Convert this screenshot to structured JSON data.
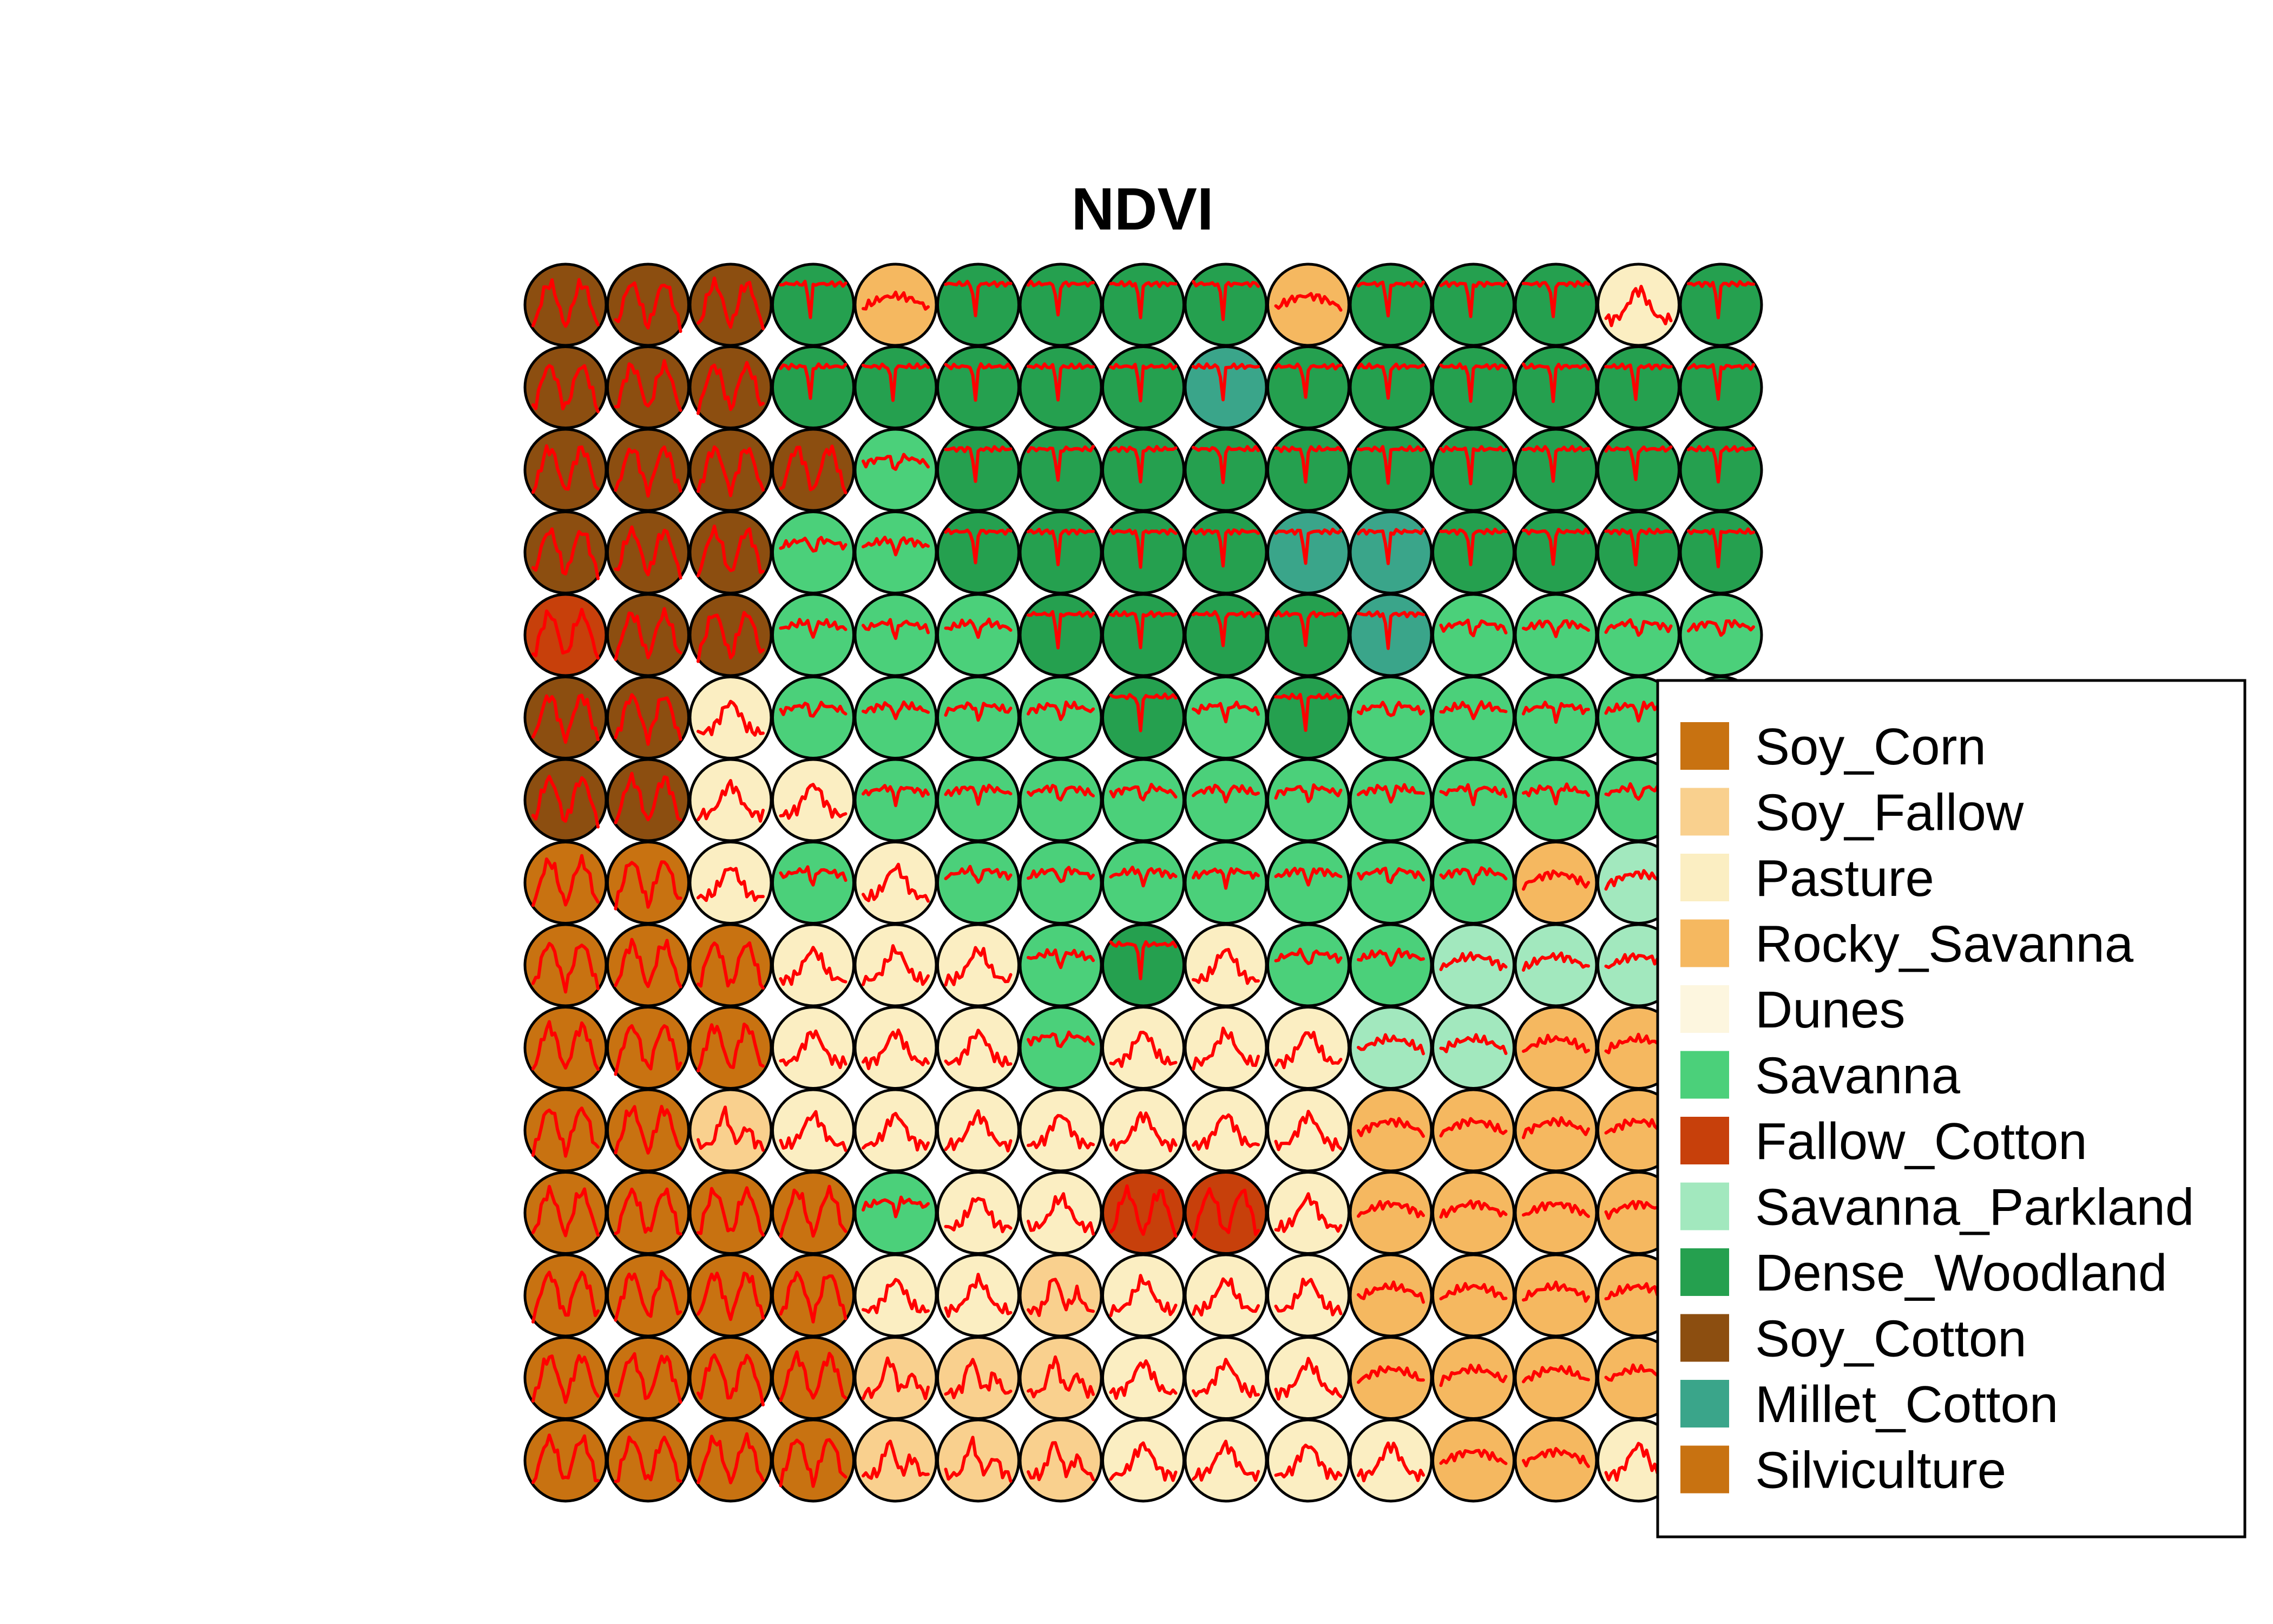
{
  "chart_data": {
    "type": "som_map",
    "title": "NDVI",
    "grid": {
      "rows": 15,
      "cols": 15
    },
    "legend": {
      "placement": "right",
      "entries": [
        {
          "key": "SC",
          "label": "Soy_Corn",
          "color": "#C87211"
        },
        {
          "key": "SF",
          "label": "Soy_Fallow",
          "color": "#F9D08E"
        },
        {
          "key": "P",
          "label": "Pasture",
          "color": "#FBEEC2"
        },
        {
          "key": "R",
          "label": "Rocky_Savanna",
          "color": "#F5B860"
        },
        {
          "key": "D",
          "label": "Dunes",
          "color": "#FDF6DF"
        },
        {
          "key": "S",
          "label": "Savanna",
          "color": "#4BD07A"
        },
        {
          "key": "FC",
          "label": "Fallow_Cotton",
          "color": "#C7400B"
        },
        {
          "key": "SP",
          "label": "Savanna_Parkland",
          "color": "#A2E8BE"
        },
        {
          "key": "DW",
          "label": "Dense_Woodland",
          "color": "#25A04F"
        },
        {
          "key": "SCo",
          "label": "Soy_Cotton",
          "color": "#8C4E10"
        },
        {
          "key": "MC",
          "label": "Millet_Cotton",
          "color": "#3AA58A"
        },
        {
          "key": "Si",
          "label": "Silviculture",
          "color": "#C87211"
        }
      ]
    },
    "cells": [
      [
        "SCo",
        "SCo",
        "SCo",
        "DW",
        "R",
        "DW",
        "DW",
        "DW",
        "DW",
        "R",
        "DW",
        "DW",
        "DW",
        "P",
        "DW"
      ],
      [
        "SCo",
        "SCo",
        "SCo",
        "DW",
        "DW",
        "DW",
        "DW",
        "DW",
        "MC",
        "DW",
        "DW",
        "DW",
        "DW",
        "DW",
        "DW"
      ],
      [
        "SCo",
        "SCo",
        "SCo",
        "SCo",
        "S",
        "DW",
        "DW",
        "DW",
        "DW",
        "DW",
        "DW",
        "DW",
        "DW",
        "DW",
        "DW"
      ],
      [
        "SCo",
        "SCo",
        "SCo",
        "S",
        "S",
        "DW",
        "DW",
        "DW",
        "DW",
        "MC",
        "MC",
        "DW",
        "DW",
        "DW",
        "DW"
      ],
      [
        "FC",
        "SCo",
        "SCo",
        "S",
        "S",
        "S",
        "DW",
        "DW",
        "DW",
        "DW",
        "MC",
        "S",
        "S",
        "S",
        "S"
      ],
      [
        "SCo",
        "SCo",
        "P",
        "S",
        "S",
        "S",
        "S",
        "DW",
        "S",
        "DW",
        "S",
        "S",
        "S",
        "S",
        "S"
      ],
      [
        "SCo",
        "SCo",
        "P",
        "P",
        "S",
        "S",
        "S",
        "S",
        "S",
        "S",
        "S",
        "S",
        "S",
        "S",
        "S"
      ],
      [
        "Si",
        "Si",
        "P",
        "S",
        "P",
        "S",
        "S",
        "S",
        "S",
        "S",
        "S",
        "S",
        "R",
        "SP",
        "SP"
      ],
      [
        "Si",
        "Si",
        "Si",
        "P",
        "P",
        "P",
        "S",
        "DW",
        "P",
        "S",
        "S",
        "SP",
        "SP",
        "SP",
        "SP"
      ],
      [
        "Si",
        "Si",
        "Si",
        "P",
        "P",
        "P",
        "S",
        "P",
        "P",
        "P",
        "SP",
        "SP",
        "R",
        "R",
        "R"
      ],
      [
        "Si",
        "Si",
        "SF",
        "P",
        "P",
        "P",
        "P",
        "P",
        "P",
        "P",
        "R",
        "R",
        "R",
        "R",
        "R"
      ],
      [
        "Si",
        "Si",
        "Si",
        "Si",
        "S",
        "P",
        "P",
        "FC",
        "FC",
        "P",
        "R",
        "R",
        "R",
        "R",
        "R"
      ],
      [
        "Si",
        "Si",
        "Si",
        "Si",
        "P",
        "P",
        "SF",
        "P",
        "P",
        "P",
        "R",
        "R",
        "R",
        "R",
        "R"
      ],
      [
        "Si",
        "Si",
        "Si",
        "Si",
        "SF",
        "SF",
        "SF",
        "P",
        "P",
        "P",
        "R",
        "R",
        "R",
        "R",
        "R"
      ],
      [
        "Si",
        "Si",
        "Si",
        "Si",
        "SF",
        "SF",
        "SF",
        "P",
        "P",
        "P",
        "P",
        "R",
        "R",
        "P",
        "P"
      ]
    ]
  }
}
